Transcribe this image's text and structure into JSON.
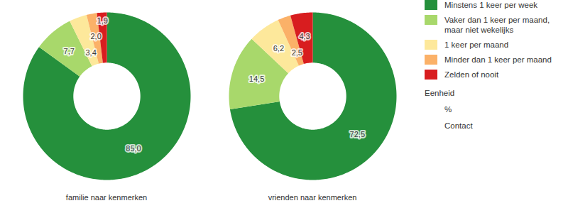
{
  "chart_data": {
    "type": "donut",
    "categories": [
      "Minstens 1 keer per week",
      "Vaker dan 1 keer per maand, maar niet wekelijks",
      "1 keer per maand",
      "Minder dan 1 keer per maand",
      "Zelden of nooit"
    ],
    "colors": [
      "#25903c",
      "#a8d86b",
      "#fde89b",
      "#fbb168",
      "#d81d1f"
    ],
    "series": [
      {
        "name": "familie naar kenmerken",
        "values": [
          85.0,
          7.7,
          3.4,
          2.0,
          1.9
        ],
        "value_labels": [
          "85,0",
          "7,7",
          "3,4",
          "2,0",
          "1,9"
        ]
      },
      {
        "name": "vrienden naar kenmerken",
        "values": [
          72.5,
          14.5,
          6.2,
          2.5,
          4.3
        ],
        "value_labels": [
          "72,5",
          "14,5",
          "6,2",
          "2,5",
          "4,3"
        ]
      }
    ],
    "data_labels": true,
    "legend": "right",
    "annotations": [
      "Eenheid",
      "%",
      "Contact"
    ]
  }
}
